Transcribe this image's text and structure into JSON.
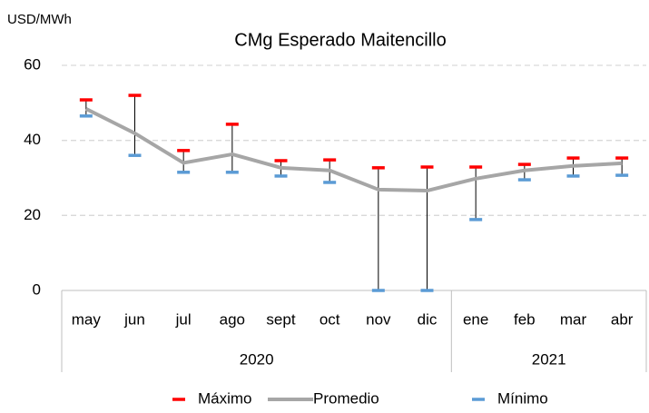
{
  "chart_data": {
    "type": "line",
    "title": "CMg Esperado Maitencillo",
    "y_label": "USD/MWh",
    "categories": [
      "may",
      "jun",
      "jul",
      "ago",
      "sept",
      "oct",
      "nov",
      "dic",
      "ene",
      "feb",
      "mar",
      "abr"
    ],
    "groups": [
      {
        "name": "2020",
        "count": 8
      },
      {
        "name": "2021",
        "count": 4
      }
    ],
    "series": [
      {
        "name": "Máximo",
        "color": "#ff0000",
        "values": [
          50.8,
          52,
          37.3,
          44.3,
          34.6,
          34.8,
          32.7,
          32.9,
          32.9,
          33.6,
          35.3,
          35.3
        ]
      },
      {
        "name": "Promedio",
        "color": "#a6a6a6",
        "values": [
          48.4,
          41.9,
          34,
          36.3,
          32.7,
          32,
          26.9,
          26.6,
          29.8,
          32,
          33.2,
          33.9
        ]
      },
      {
        "name": "Mínimo",
        "color": "#5b9bd5",
        "values": [
          46.5,
          36,
          31.5,
          31.5,
          30.5,
          28.8,
          0,
          0,
          18.9,
          29.5,
          30.5,
          30.7
        ]
      }
    ],
    "ylim": [
      0,
      60
    ],
    "yticks": [
      0,
      20,
      40,
      60
    ],
    "grid": true,
    "legend": "bottom"
  }
}
